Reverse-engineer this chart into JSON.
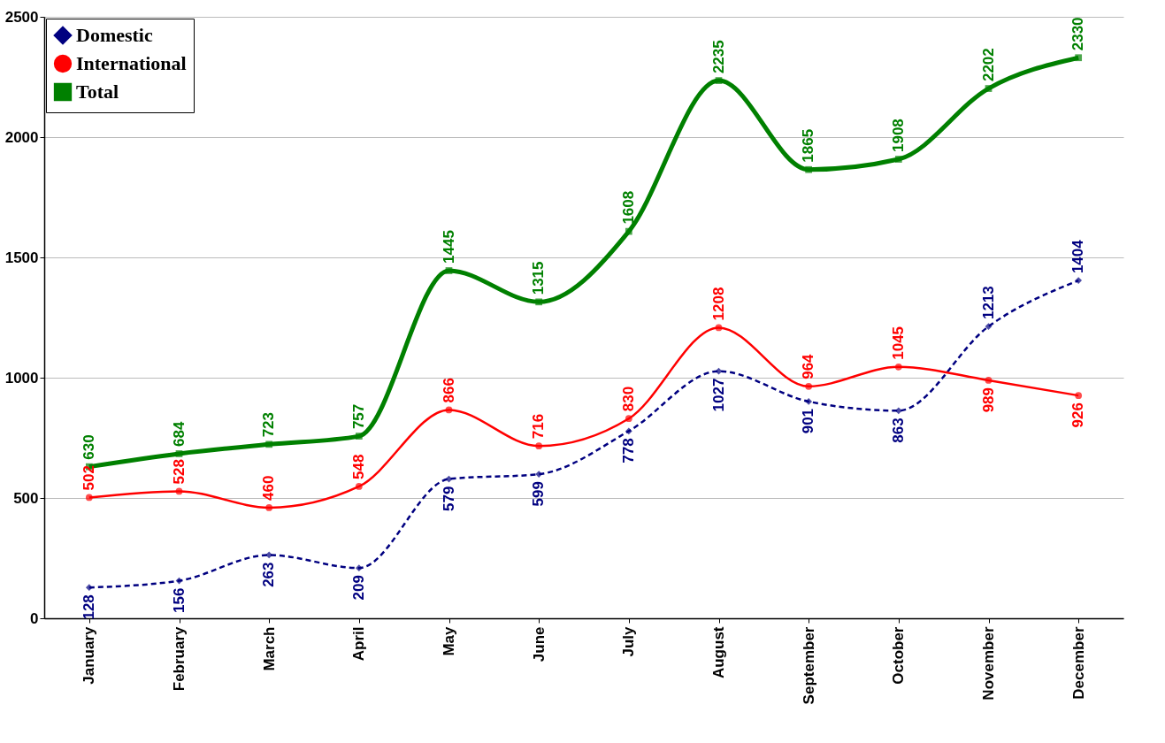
{
  "chart_data": {
    "type": "line",
    "categories": [
      "January",
      "February",
      "March",
      "April",
      "May",
      "June",
      "July",
      "August",
      "September",
      "October",
      "November",
      "December"
    ],
    "series": [
      {
        "name": "Domestic",
        "color": "#000080",
        "values": [
          128,
          156,
          263,
          209,
          579,
          599,
          778,
          1027,
          901,
          863,
          1213,
          1404
        ],
        "line_style": "dashed",
        "marker": "diamond"
      },
      {
        "name": "International",
        "color": "#ff0000",
        "values": [
          502,
          528,
          460,
          548,
          866,
          716,
          830,
          1208,
          964,
          1045,
          989,
          926
        ],
        "line_style": "solid",
        "marker": "circle"
      },
      {
        "name": "Total",
        "color": "#008000",
        "values": [
          630,
          684,
          723,
          757,
          1445,
          1315,
          1608,
          2235,
          1865,
          1908,
          2202,
          2330
        ],
        "line_style": "solid",
        "marker": "square"
      }
    ],
    "ylim": [
      0,
      2500
    ],
    "yticks": [
      0,
      500,
      1000,
      1500,
      2000,
      2500
    ],
    "grid": "y",
    "legend": "top left",
    "data_labels": true
  }
}
